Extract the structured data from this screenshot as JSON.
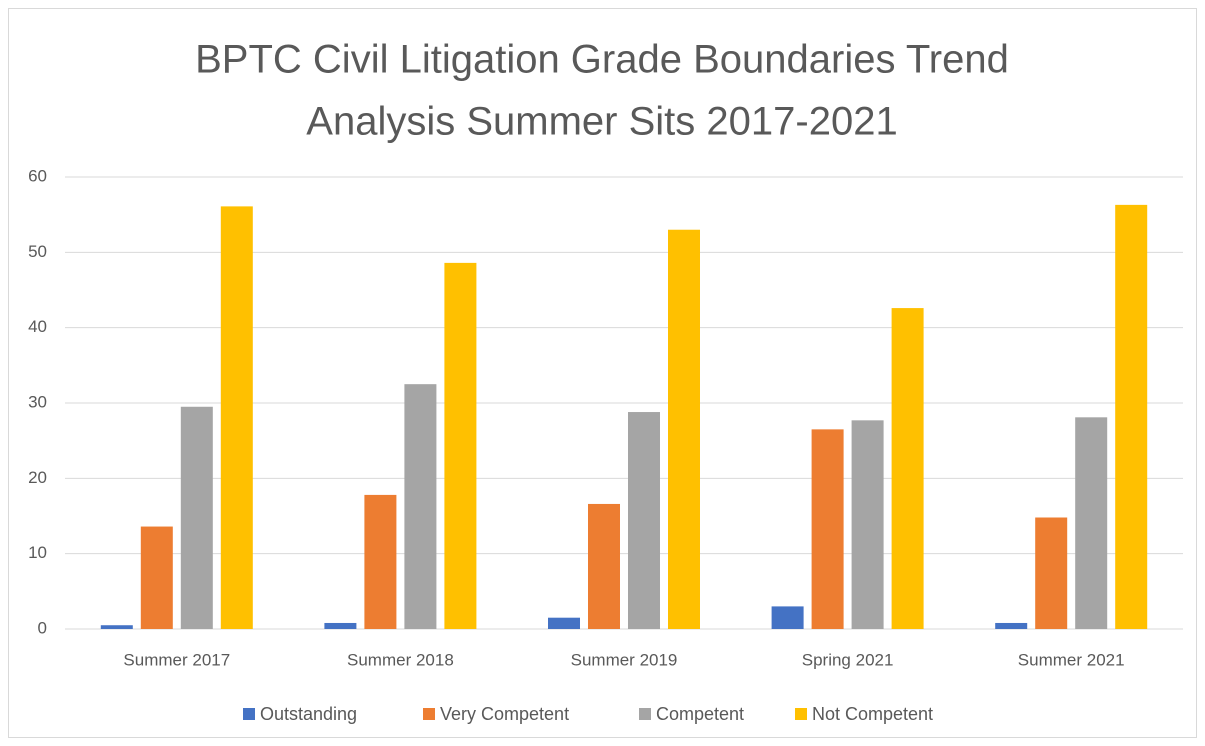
{
  "chart_data": {
    "type": "bar",
    "title": [
      "BPTC Civil Litigation Grade Boundaries Trend",
      "Analysis Summer Sits  2017-2021"
    ],
    "categories": [
      "Summer 2017",
      "Summer 2018",
      "Summer 2019",
      "Spring 2021",
      "Summer 2021"
    ],
    "series": [
      {
        "name": "Outstanding",
        "color": "#4472c4",
        "values": [
          0.5,
          0.8,
          1.5,
          3.0,
          0.8
        ]
      },
      {
        "name": "Very Competent",
        "color": "#ed7d31",
        "values": [
          13.6,
          17.8,
          16.6,
          26.5,
          14.8
        ]
      },
      {
        "name": "Competent",
        "color": "#a5a5a5",
        "values": [
          29.5,
          32.5,
          28.8,
          27.7,
          28.1
        ]
      },
      {
        "name": "Not Competent",
        "color": "#ffc000",
        "values": [
          56.1,
          48.6,
          53.0,
          42.6,
          56.3
        ]
      }
    ],
    "ylim": [
      0,
      60
    ],
    "yticks": [
      0,
      10,
      20,
      30,
      40,
      50,
      60
    ],
    "grid": true,
    "legend": "bottom"
  }
}
